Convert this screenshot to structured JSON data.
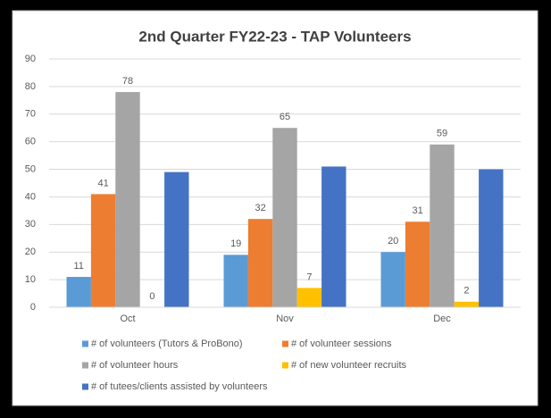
{
  "chart_data": {
    "type": "bar",
    "title": "2nd Quarter FY22-23 - TAP Volunteers",
    "categories": [
      "Oct",
      "Nov",
      "Dec"
    ],
    "series": [
      {
        "name": "# of volunteers (Tutors & ProBono)",
        "color": "#5b9bd5",
        "values": [
          11,
          19,
          20
        ],
        "data_labels": true
      },
      {
        "name": "# of volunteer sessions",
        "color": "#ed7d31",
        "values": [
          41,
          32,
          31
        ],
        "data_labels": true
      },
      {
        "name": "# of volunteer hours",
        "color": "#a5a5a5",
        "values": [
          78,
          65,
          59
        ],
        "data_labels": true
      },
      {
        "name": "# of new volunteer recruits",
        "color": "#ffc000",
        "values": [
          0,
          7,
          2
        ],
        "data_labels": true
      },
      {
        "name": "# of tutees/clients assisted by volunteers",
        "color": "#4472c4",
        "values": [
          49,
          51,
          50
        ],
        "data_labels": false
      }
    ],
    "ylim": [
      0,
      90
    ],
    "yticks": [
      0,
      10,
      20,
      30,
      40,
      50,
      60,
      70,
      80,
      90
    ],
    "grid": true,
    "legend": "bottom"
  }
}
